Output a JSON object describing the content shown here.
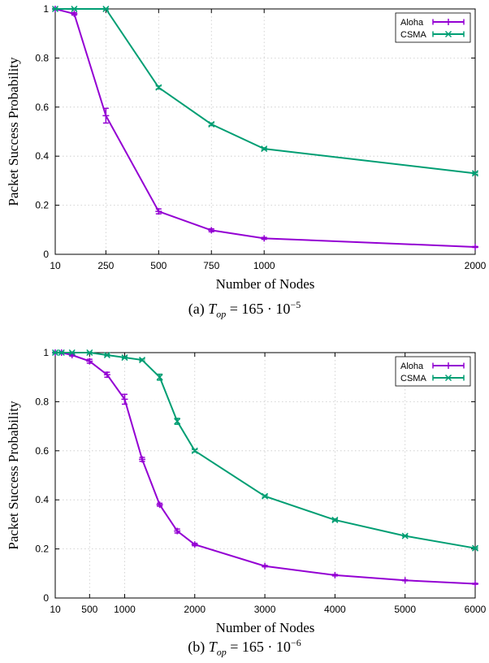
{
  "chart_data": [
    {
      "type": "line",
      "ylabel": "Packet Success Probability",
      "xlabel": "Number of Nodes",
      "caption": {
        "prefix": "(a)",
        "equation": "T_op = 165 · 10^−5",
        "var": "T",
        "sub": "op",
        "mid": " = 165 · 10",
        "exp": "−5"
      },
      "xlim": [
        10,
        2000
      ],
      "ylim": [
        0,
        1
      ],
      "xticks": [
        10,
        250,
        500,
        750,
        1000,
        2000
      ],
      "xtick_labels": [
        "10",
        "250",
        "500",
        "750",
        "1000",
        "2000"
      ],
      "yticks": [
        0,
        0.2,
        0.4,
        0.6,
        0.8,
        1
      ],
      "ytick_labels": [
        "0",
        "0.2",
        "0.4",
        "0.6",
        "0.8",
        "1"
      ],
      "grid": true,
      "legend_position": "top-right",
      "series": [
        {
          "name": "Aloha",
          "color": "#9400d3",
          "marker": "plus",
          "x": [
            10,
            100,
            250,
            500,
            750,
            1000,
            2000
          ],
          "y": [
            1.0,
            0.98,
            0.565,
            0.175,
            0.098,
            0.065,
            0.03
          ],
          "err": [
            0.002,
            0.005,
            0.03,
            0.01,
            0.006,
            0.004,
            0.002
          ]
        },
        {
          "name": "CSMA",
          "color": "#009e73",
          "marker": "x",
          "x": [
            10,
            100,
            250,
            500,
            750,
            1000,
            2000
          ],
          "y": [
            1.0,
            1.0,
            1.0,
            0.68,
            0.53,
            0.43,
            0.33
          ],
          "err": [
            0.002,
            0.002,
            0.002,
            0.006,
            0.005,
            0.004,
            0.004
          ]
        }
      ]
    },
    {
      "type": "line",
      "ylabel": "Packet Success Probability",
      "xlabel": "Number of Nodes",
      "caption": {
        "prefix": "(b)",
        "equation": "T_op = 165 · 10^−6",
        "var": "T",
        "sub": "op",
        "mid": " = 165 · 10",
        "exp": "−6"
      },
      "xlim": [
        10,
        6000
      ],
      "ylim": [
        0,
        1
      ],
      "xticks": [
        10,
        500,
        1000,
        2000,
        3000,
        4000,
        5000,
        6000
      ],
      "xtick_labels": [
        "10",
        "500",
        "1000",
        "2000",
        "3000",
        "4000",
        "5000",
        "6000"
      ],
      "yticks": [
        0,
        0.2,
        0.4,
        0.6,
        0.8,
        1
      ],
      "ytick_labels": [
        "0",
        "0.2",
        "0.4",
        "0.6",
        "0.8",
        "1"
      ],
      "grid": true,
      "legend_position": "top-right",
      "series": [
        {
          "name": "Aloha",
          "color": "#9400d3",
          "marker": "plus",
          "x": [
            10,
            100,
            250,
            500,
            750,
            1000,
            1250,
            1500,
            1750,
            2000,
            3000,
            4000,
            5000,
            6000
          ],
          "y": [
            1.0,
            1.0,
            0.99,
            0.965,
            0.91,
            0.81,
            0.565,
            0.38,
            0.273,
            0.218,
            0.13,
            0.093,
            0.072,
            0.058
          ],
          "err": [
            0.002,
            0.002,
            0.004,
            0.008,
            0.01,
            0.02,
            0.008,
            0.006,
            0.008,
            0.005,
            0.003,
            0.003,
            0.002,
            0.002
          ]
        },
        {
          "name": "CSMA",
          "color": "#009e73",
          "marker": "x",
          "x": [
            10,
            100,
            250,
            500,
            750,
            1000,
            1250,
            1500,
            1750,
            2000,
            3000,
            4000,
            5000,
            6000
          ],
          "y": [
            1.0,
            1.0,
            1.0,
            1.0,
            0.99,
            0.98,
            0.97,
            0.9,
            0.72,
            0.6,
            0.415,
            0.318,
            0.253,
            0.203
          ],
          "err": [
            0.002,
            0.002,
            0.002,
            0.002,
            0.003,
            0.003,
            0.004,
            0.012,
            0.012,
            0.005,
            0.004,
            0.004,
            0.003,
            0.003
          ]
        }
      ]
    }
  ]
}
